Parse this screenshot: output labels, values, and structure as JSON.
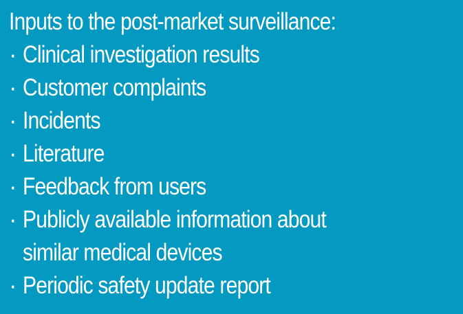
{
  "slide": {
    "heading": "Inputs to the post-market surveillance:",
    "bullet_symbol": "·",
    "items": [
      "Clinical investigation results",
      "Customer complaints",
      "Incidents",
      "Literature",
      "Feedback from users",
      "Publicly available information about\nsimilar medical devices",
      "Periodic safety update report"
    ]
  },
  "colors": {
    "background": "#0399c1",
    "text": "#ffffff"
  }
}
